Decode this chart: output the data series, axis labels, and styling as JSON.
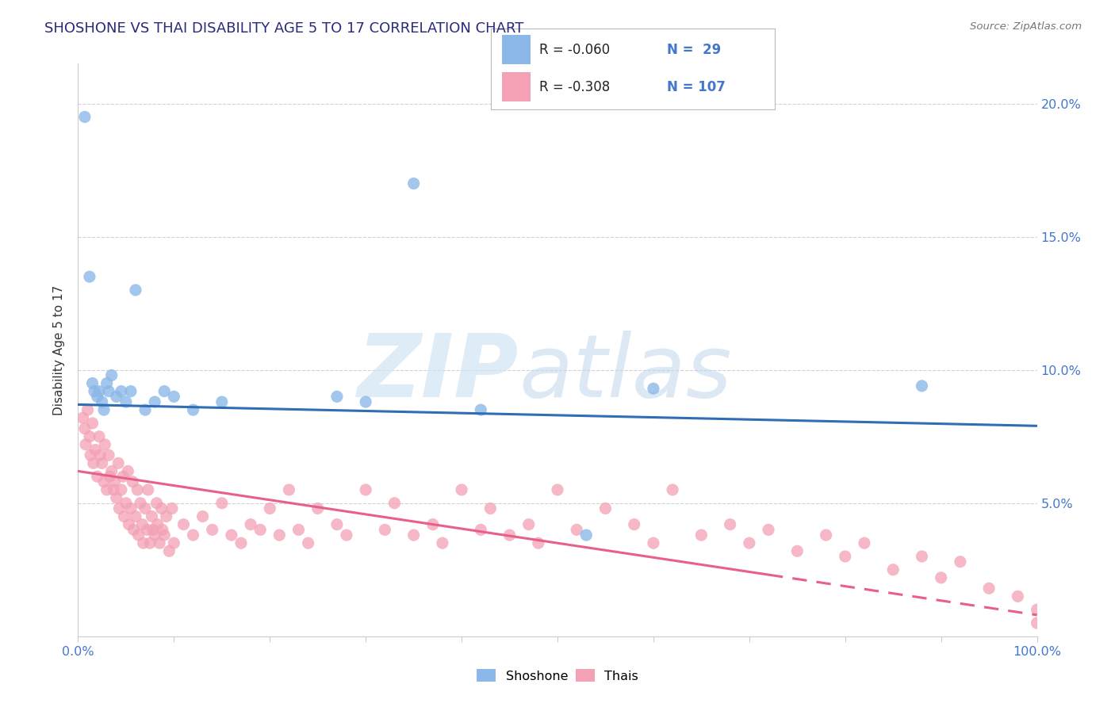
{
  "title": "SHOSHONE VS THAI DISABILITY AGE 5 TO 17 CORRELATION CHART",
  "source_text": "Source: ZipAtlas.com",
  "ylabel": "Disability Age 5 to 17",
  "xlim": [
    0,
    1.0
  ],
  "ylim": [
    0,
    0.215
  ],
  "legend_r_shoshone": "-0.060",
  "legend_n_shoshone": "29",
  "legend_r_thai": "-0.308",
  "legend_n_thai": "107",
  "shoshone_color": "#8BB8E8",
  "thai_color": "#F4A0B5",
  "shoshone_line_color": "#2F6DB5",
  "thai_line_color": "#E8608A",
  "shoshone_line_x0": 0.0,
  "shoshone_line_y0": 0.087,
  "shoshone_line_x1": 1.0,
  "shoshone_line_y1": 0.079,
  "thai_line_x0": 0.0,
  "thai_line_y0": 0.062,
  "thai_line_x1": 1.0,
  "thai_line_y1": 0.008,
  "thai_line_solid_end": 0.72,
  "shoshone_points_x": [
    0.007,
    0.012,
    0.015,
    0.017,
    0.02,
    0.022,
    0.025,
    0.027,
    0.03,
    0.032,
    0.035,
    0.04,
    0.045,
    0.05,
    0.055,
    0.06,
    0.07,
    0.08,
    0.09,
    0.1,
    0.12,
    0.15,
    0.27,
    0.3,
    0.35,
    0.42,
    0.53,
    0.88,
    0.6
  ],
  "shoshone_points_y": [
    0.195,
    0.135,
    0.095,
    0.092,
    0.09,
    0.092,
    0.088,
    0.085,
    0.095,
    0.092,
    0.098,
    0.09,
    0.092,
    0.088,
    0.092,
    0.13,
    0.085,
    0.088,
    0.092,
    0.09,
    0.085,
    0.088,
    0.09,
    0.088,
    0.17,
    0.085,
    0.038,
    0.094,
    0.093
  ],
  "thai_points_x": [
    0.005,
    0.007,
    0.008,
    0.01,
    0.012,
    0.013,
    0.015,
    0.016,
    0.018,
    0.02,
    0.022,
    0.023,
    0.025,
    0.027,
    0.028,
    0.03,
    0.032,
    0.033,
    0.035,
    0.037,
    0.038,
    0.04,
    0.042,
    0.043,
    0.045,
    0.047,
    0.048,
    0.05,
    0.052,
    0.053,
    0.055,
    0.057,
    0.058,
    0.06,
    0.062,
    0.063,
    0.065,
    0.067,
    0.068,
    0.07,
    0.072,
    0.073,
    0.075,
    0.077,
    0.078,
    0.08,
    0.082,
    0.083,
    0.085,
    0.087,
    0.088,
    0.09,
    0.092,
    0.095,
    0.098,
    0.1,
    0.11,
    0.12,
    0.13,
    0.14,
    0.15,
    0.16,
    0.17,
    0.18,
    0.19,
    0.2,
    0.21,
    0.22,
    0.23,
    0.24,
    0.25,
    0.27,
    0.28,
    0.3,
    0.32,
    0.33,
    0.35,
    0.37,
    0.38,
    0.4,
    0.42,
    0.43,
    0.45,
    0.47,
    0.48,
    0.5,
    0.52,
    0.55,
    0.58,
    0.6,
    0.62,
    0.65,
    0.68,
    0.7,
    0.72,
    0.75,
    0.78,
    0.8,
    0.82,
    0.85,
    0.88,
    0.9,
    0.92,
    0.95,
    0.98,
    1.0,
    1.0
  ],
  "thai_points_y": [
    0.082,
    0.078,
    0.072,
    0.085,
    0.075,
    0.068,
    0.08,
    0.065,
    0.07,
    0.06,
    0.075,
    0.068,
    0.065,
    0.058,
    0.072,
    0.055,
    0.068,
    0.06,
    0.062,
    0.055,
    0.058,
    0.052,
    0.065,
    0.048,
    0.055,
    0.06,
    0.045,
    0.05,
    0.062,
    0.042,
    0.048,
    0.058,
    0.04,
    0.045,
    0.055,
    0.038,
    0.05,
    0.042,
    0.035,
    0.048,
    0.04,
    0.055,
    0.035,
    0.045,
    0.04,
    0.038,
    0.05,
    0.042,
    0.035,
    0.048,
    0.04,
    0.038,
    0.045,
    0.032,
    0.048,
    0.035,
    0.042,
    0.038,
    0.045,
    0.04,
    0.05,
    0.038,
    0.035,
    0.042,
    0.04,
    0.048,
    0.038,
    0.055,
    0.04,
    0.035,
    0.048,
    0.042,
    0.038,
    0.055,
    0.04,
    0.05,
    0.038,
    0.042,
    0.035,
    0.055,
    0.04,
    0.048,
    0.038,
    0.042,
    0.035,
    0.055,
    0.04,
    0.048,
    0.042,
    0.035,
    0.055,
    0.038,
    0.042,
    0.035,
    0.04,
    0.032,
    0.038,
    0.03,
    0.035,
    0.025,
    0.03,
    0.022,
    0.028,
    0.018,
    0.015,
    0.01,
    0.005
  ]
}
